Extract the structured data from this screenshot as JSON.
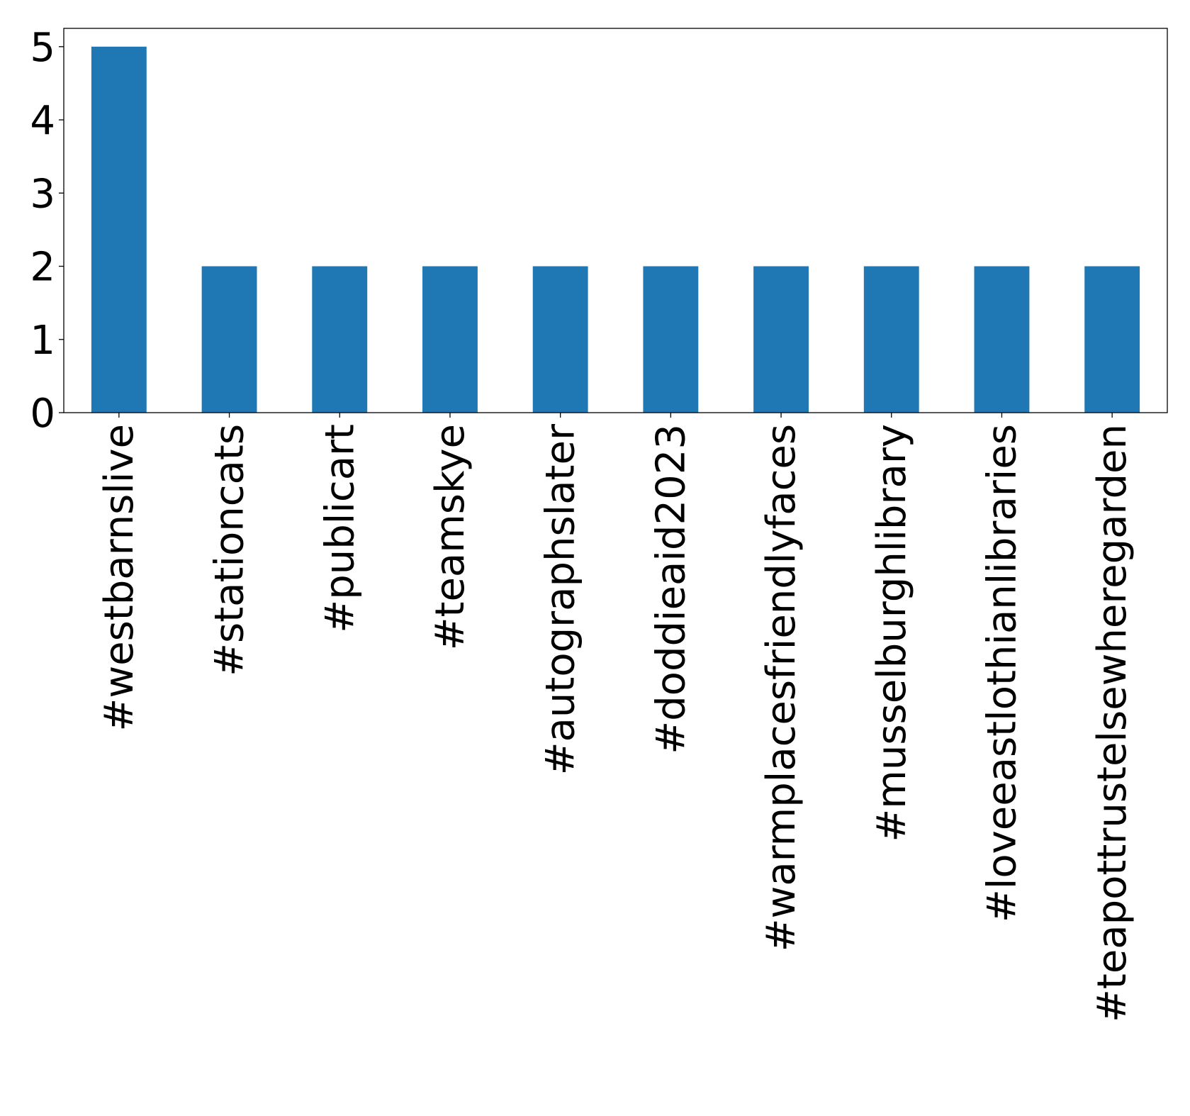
{
  "chart_data": {
    "type": "bar",
    "title": "",
    "xlabel": "",
    "ylabel": "",
    "categories": [
      "#westbarnslive",
      "#stationcats",
      "#publicart",
      "#teamskye",
      "#autographslater",
      "#doddieaid2023",
      "#warmplacesfriendlyfaces",
      "#musselburghlibrary",
      "#loveeastlothianlibraries",
      "#teapottrustelsewheregarden"
    ],
    "values": [
      5,
      2,
      2,
      2,
      2,
      2,
      2,
      2,
      2,
      2
    ],
    "ylim": [
      0,
      5.25
    ],
    "yticks": [
      0,
      1,
      2,
      3,
      4,
      5
    ],
    "bar_color": "#1f77b4",
    "grid": false,
    "legend": "none"
  }
}
